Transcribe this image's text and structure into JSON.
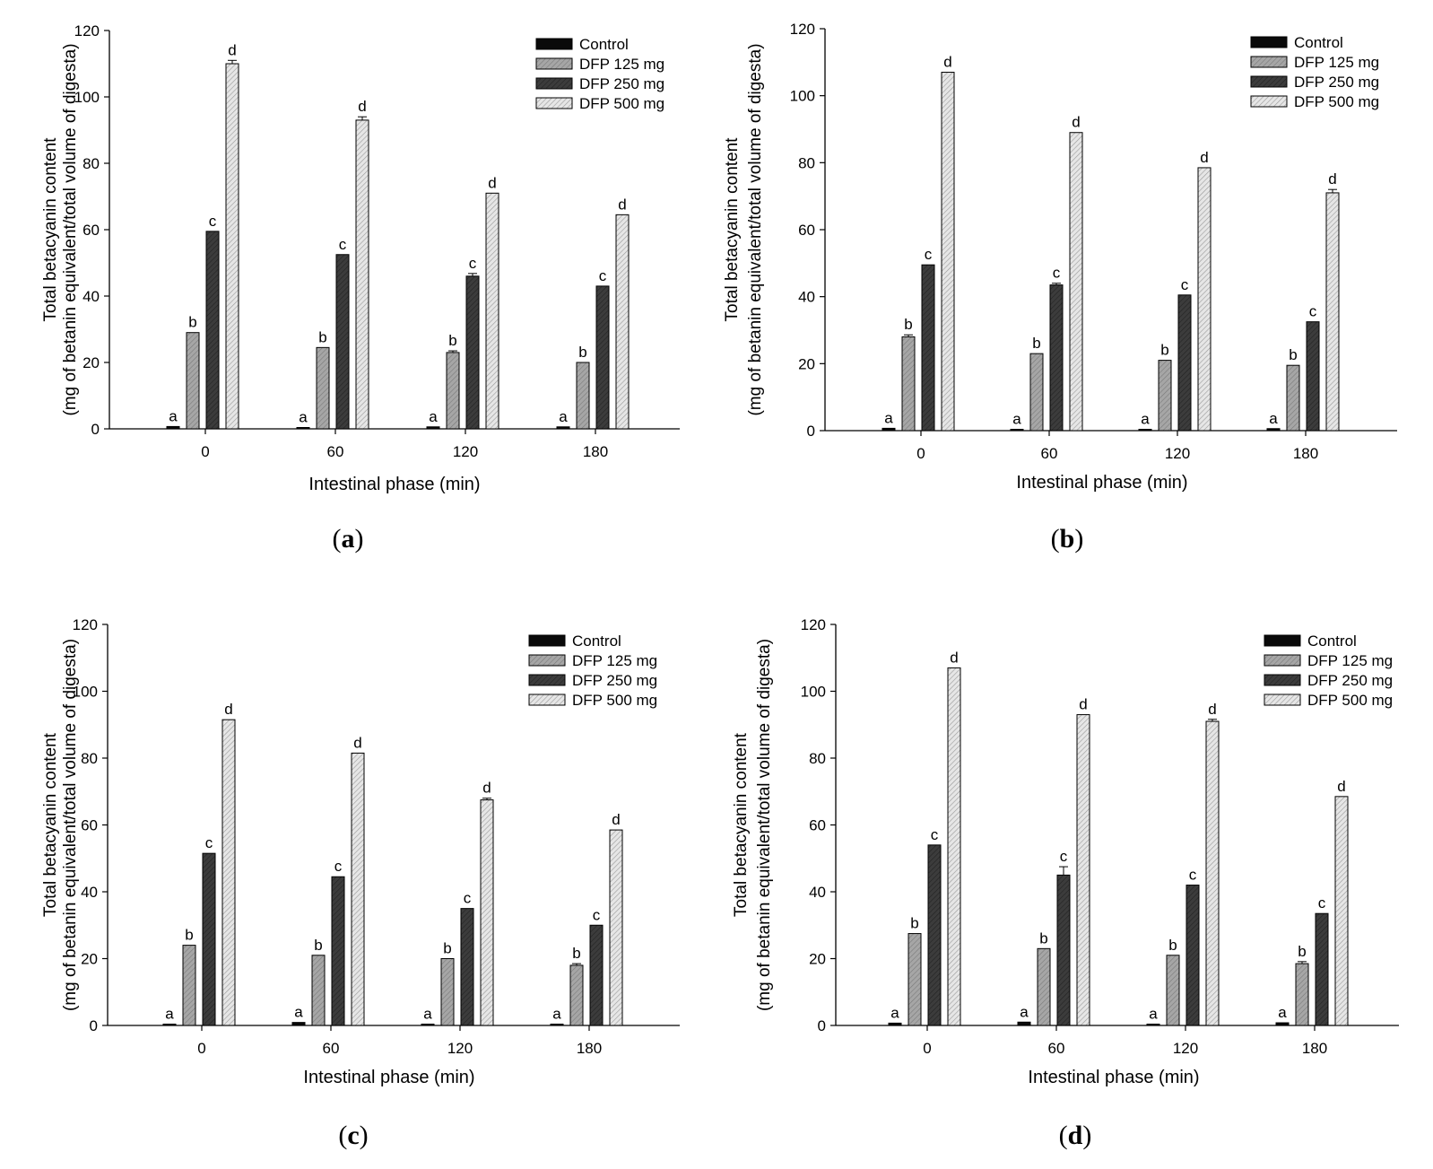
{
  "chart_data": [
    {
      "type": "bar",
      "panel": "a",
      "ylabel_line1": "Total betacyanin content",
      "ylabel_line2": "(mg of betanin equivalent/total volume of digesta)",
      "xlabel": "Intestinal phase (min)",
      "categories": [
        "0",
        "60",
        "120",
        "180"
      ],
      "ylim": [
        0,
        120
      ],
      "yticks": [
        "0",
        "20",
        "40",
        "60",
        "80",
        "100",
        "120"
      ],
      "legend_position": "top-right",
      "series": [
        {
          "name": "Control",
          "values": [
            0.7,
            0.4,
            0.6,
            0.6
          ],
          "errors": [
            0,
            0,
            0,
            0
          ],
          "letters": [
            "a",
            "a",
            "a",
            "a"
          ]
        },
        {
          "name": "DFP 125 mg",
          "values": [
            29,
            24.5,
            23,
            20
          ],
          "errors": [
            0,
            0,
            0.5,
            0
          ],
          "letters": [
            "b",
            "b",
            "b",
            "b"
          ]
        },
        {
          "name": "DFP 250 mg",
          "values": [
            59.5,
            52.5,
            46,
            43
          ],
          "errors": [
            0,
            0,
            0.8,
            0
          ],
          "letters": [
            "c",
            "c",
            "c",
            "c"
          ]
        },
        {
          "name": "DFP 500 mg",
          "values": [
            110,
            93,
            71,
            64.5
          ],
          "errors": [
            1,
            1,
            0,
            0
          ],
          "letters": [
            "d",
            "d",
            "d",
            "d"
          ]
        }
      ]
    },
    {
      "type": "bar",
      "panel": "b",
      "ylabel_line1": "Total betacyanin content",
      "ylabel_line2": "(mg of betanin equivalent/total volume of digesta)",
      "xlabel": "Intestinal phase (min)",
      "categories": [
        "0",
        "60",
        "120",
        "180"
      ],
      "ylim": [
        0,
        120
      ],
      "yticks": [
        "0",
        "20",
        "40",
        "60",
        "80",
        "100",
        "120"
      ],
      "legend_position": "top-right",
      "series": [
        {
          "name": "Control",
          "values": [
            0.7,
            0.4,
            0.4,
            0.6
          ],
          "errors": [
            0,
            0,
            0,
            0
          ],
          "letters": [
            "a",
            "a",
            "a",
            "a"
          ]
        },
        {
          "name": "DFP 125 mg",
          "values": [
            28,
            23,
            21,
            19.5
          ],
          "errors": [
            0.6,
            0,
            0,
            0
          ],
          "letters": [
            "b",
            "b",
            "b",
            "b"
          ]
        },
        {
          "name": "DFP 250 mg",
          "values": [
            49.5,
            43.5,
            40.5,
            32.5
          ],
          "errors": [
            0,
            0.5,
            0,
            0
          ],
          "letters": [
            "c",
            "c",
            "c",
            "c"
          ]
        },
        {
          "name": "DFP 500 mg",
          "values": [
            107,
            89,
            78.5,
            71
          ],
          "errors": [
            0,
            0,
            0,
            1
          ],
          "letters": [
            "d",
            "d",
            "d",
            "d"
          ]
        }
      ]
    },
    {
      "type": "bar",
      "panel": "c",
      "ylabel_line1": "Total betacyanin content",
      "ylabel_line2": "(mg of betanin equivalent/total volume of digesta)",
      "xlabel": "Intestinal phase (min)",
      "categories": [
        "0",
        "60",
        "120",
        "180"
      ],
      "ylim": [
        0,
        120
      ],
      "yticks": [
        "0",
        "20",
        "40",
        "60",
        "80",
        "100",
        "120"
      ],
      "legend_position": "top-right",
      "series": [
        {
          "name": "Control",
          "values": [
            0.4,
            0.9,
            0.3,
            0.3
          ],
          "errors": [
            0,
            0,
            0,
            0
          ],
          "letters": [
            "a",
            "a",
            "a",
            "a"
          ]
        },
        {
          "name": "DFP 125 mg",
          "values": [
            24,
            21,
            20,
            18
          ],
          "errors": [
            0,
            0,
            0,
            0.5
          ],
          "letters": [
            "b",
            "b",
            "b",
            "b"
          ]
        },
        {
          "name": "DFP 250 mg",
          "values": [
            51.5,
            44.5,
            35,
            30
          ],
          "errors": [
            0,
            0,
            0,
            0
          ],
          "letters": [
            "c",
            "c",
            "c",
            "c"
          ]
        },
        {
          "name": "DFP 500 mg",
          "values": [
            91.5,
            81.5,
            67.5,
            58.5
          ],
          "errors": [
            0,
            0,
            0.5,
            0
          ],
          "letters": [
            "d",
            "d",
            "d",
            "d"
          ]
        }
      ]
    },
    {
      "type": "bar",
      "panel": "d",
      "ylabel_line1": "Total betacyanin content",
      "ylabel_line2": "(mg of betanin equivalent/total volume of digesta)",
      "xlabel": "Intestinal phase (min)",
      "categories": [
        "0",
        "60",
        "120",
        "180"
      ],
      "ylim": [
        0,
        120
      ],
      "yticks": [
        "0",
        "20",
        "40",
        "60",
        "80",
        "100",
        "120"
      ],
      "legend_position": "top-right",
      "series": [
        {
          "name": "Control",
          "values": [
            0.7,
            1,
            0.3,
            0.8
          ],
          "errors": [
            0,
            0,
            0,
            0
          ],
          "letters": [
            "a",
            "a",
            "a",
            "a"
          ]
        },
        {
          "name": "DFP 125 mg",
          "values": [
            27.5,
            23,
            21,
            18.5
          ],
          "errors": [
            0,
            0,
            0,
            0.6
          ],
          "letters": [
            "b",
            "b",
            "b",
            "b"
          ]
        },
        {
          "name": "DFP 250 mg",
          "values": [
            54,
            45,
            42,
            33.5
          ],
          "errors": [
            0,
            2.5,
            0,
            0
          ],
          "letters": [
            "c",
            "c",
            "c",
            "c"
          ]
        },
        {
          "name": "DFP 500 mg",
          "values": [
            107,
            93,
            91,
            68.5
          ],
          "errors": [
            0,
            0,
            0.6,
            0
          ],
          "letters": [
            "d",
            "d",
            "d",
            "d"
          ]
        }
      ]
    }
  ],
  "panel_labels": [
    {
      "open": "(",
      "letter": "a",
      "close": ")"
    },
    {
      "open": "(",
      "letter": "b",
      "close": ")"
    },
    {
      "open": "(",
      "letter": "c",
      "close": ")"
    },
    {
      "open": "(",
      "letter": "d",
      "close": ")"
    }
  ],
  "colors": {
    "control": "#0a0a0a",
    "dfp125": "#a6a6a6",
    "dfp250": "#3c3c3c",
    "dfp500": "#d9d9d9",
    "axis": "#000000"
  }
}
